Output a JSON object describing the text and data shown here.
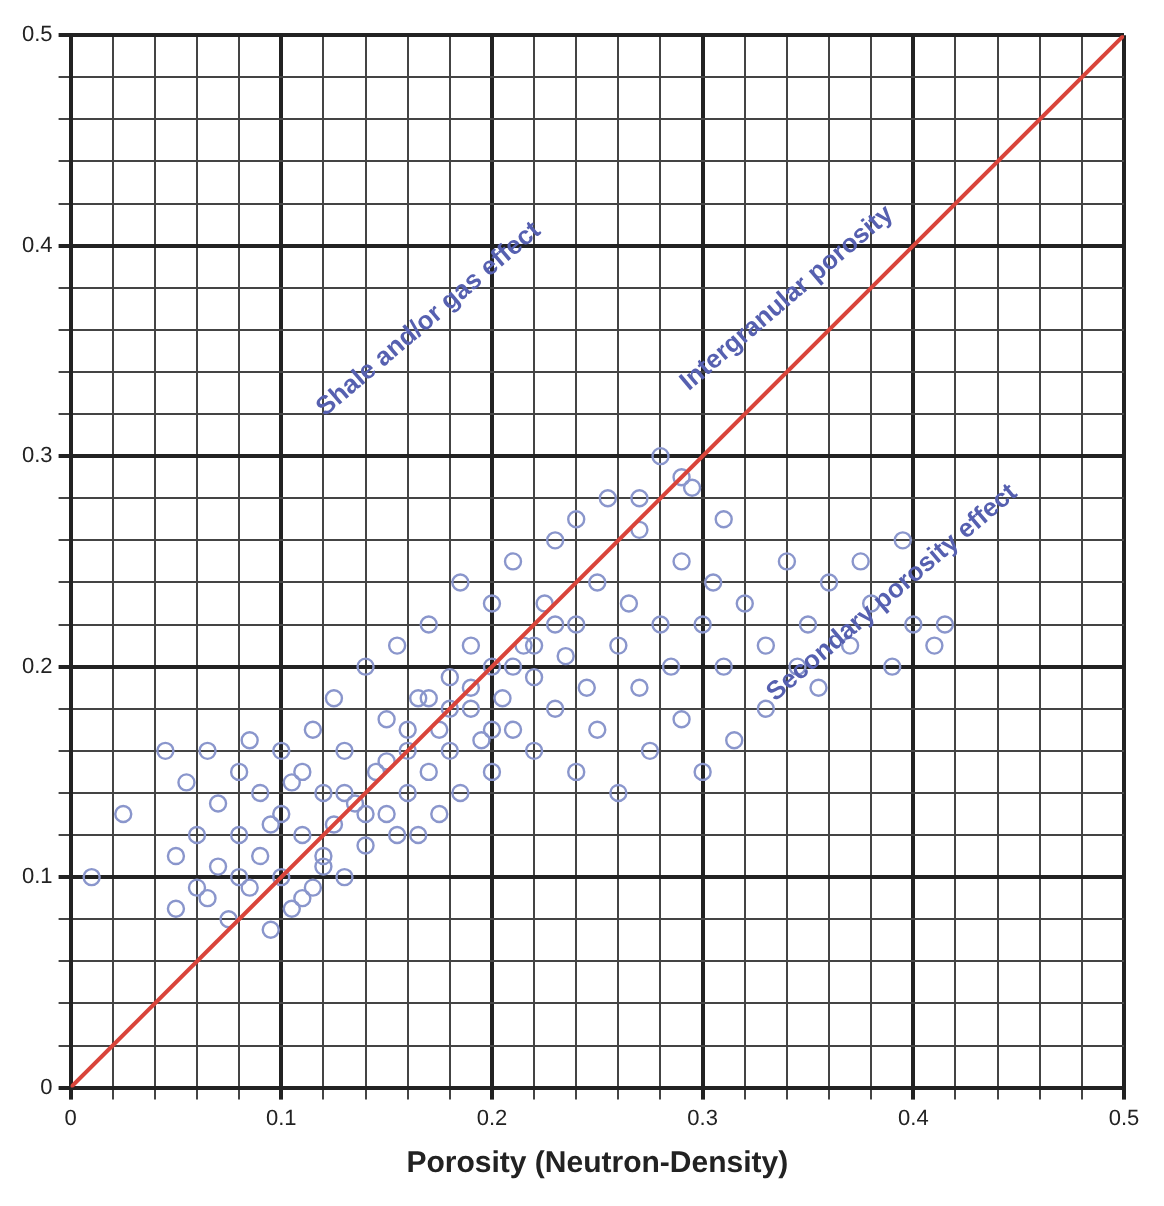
{
  "chart_data": {
    "type": "scatter",
    "xlabel": "Porosity (Neutron-Density)",
    "xlim": [
      0,
      0.5
    ],
    "ylim": [
      0,
      0.5
    ],
    "xticks": [
      0,
      {
        "value": 0.02,
        "label": null
      },
      {
        "value": 0.04,
        "label": null
      },
      {
        "value": 0.06,
        "label": null
      },
      {
        "value": 0.08,
        "label": null
      },
      0.1,
      {
        "value": 0.12,
        "label": null
      },
      {
        "value": 0.14,
        "label": null
      },
      {
        "value": 0.16,
        "label": null
      },
      {
        "value": 0.18,
        "label": null
      },
      0.2,
      {
        "value": 0.22,
        "label": null
      },
      {
        "value": 0.24,
        "label": null
      },
      {
        "value": 0.26,
        "label": null
      },
      {
        "value": 0.28,
        "label": null
      },
      0.3,
      {
        "value": 0.32,
        "label": null
      },
      {
        "value": 0.34,
        "label": null
      },
      {
        "value": 0.36,
        "label": null
      },
      {
        "value": 0.38,
        "label": null
      },
      0.4,
      {
        "value": 0.42,
        "label": null
      },
      {
        "value": 0.44,
        "label": null
      },
      {
        "value": 0.46,
        "label": null
      },
      {
        "value": 0.48,
        "label": null
      },
      0.5
    ],
    "yticks": [
      0,
      {
        "value": 0.02,
        "label": null
      },
      {
        "value": 0.04,
        "label": null
      },
      {
        "value": 0.06,
        "label": null
      },
      {
        "value": 0.08,
        "label": null
      },
      0.1,
      {
        "value": 0.12,
        "label": null
      },
      {
        "value": 0.14,
        "label": null
      },
      {
        "value": 0.16,
        "label": null
      },
      {
        "value": 0.18,
        "label": null
      },
      0.2,
      {
        "value": 0.22,
        "label": null
      },
      {
        "value": 0.24,
        "label": null
      },
      {
        "value": 0.26,
        "label": null
      },
      {
        "value": 0.28,
        "label": null
      },
      0.3,
      {
        "value": 0.32,
        "label": null
      },
      {
        "value": 0.34,
        "label": null
      },
      {
        "value": 0.36,
        "label": null
      },
      {
        "value": 0.38,
        "label": null
      },
      0.4,
      {
        "value": 0.42,
        "label": null
      },
      {
        "value": 0.44,
        "label": null
      },
      {
        "value": 0.46,
        "label": null
      },
      {
        "value": 0.48,
        "label": null
      },
      0.5
    ],
    "grid": true,
    "marker": "circle",
    "annotations": [
      "Shale and/or gas effect",
      "Intergranular porosity",
      "Secondary porosity effect"
    ],
    "series": [
      {
        "color": "#8a96cc",
        "x": [
          0.01,
          0.025,
          0.045,
          0.05,
          0.05,
          0.055,
          0.06,
          0.06,
          0.065,
          0.07,
          0.07,
          0.075,
          0.08,
          0.08,
          0.085,
          0.085,
          0.09,
          0.09,
          0.095,
          0.1,
          0.1,
          0.1,
          0.105,
          0.11,
          0.11,
          0.115,
          0.115,
          0.12,
          0.12,
          0.125,
          0.125,
          0.13,
          0.13,
          0.135,
          0.14,
          0.14,
          0.145,
          0.15,
          0.15,
          0.155,
          0.155,
          0.16,
          0.16,
          0.165,
          0.17,
          0.17,
          0.175,
          0.175,
          0.18,
          0.18,
          0.185,
          0.185,
          0.19,
          0.19,
          0.195,
          0.2,
          0.2,
          0.2,
          0.205,
          0.21,
          0.21,
          0.215,
          0.22,
          0.22,
          0.225,
          0.23,
          0.23,
          0.235,
          0.24,
          0.24,
          0.245,
          0.25,
          0.25,
          0.255,
          0.26,
          0.26,
          0.265,
          0.27,
          0.27,
          0.275,
          0.28,
          0.28,
          0.285,
          0.29,
          0.29,
          0.295,
          0.3,
          0.3,
          0.305,
          0.31,
          0.31,
          0.315,
          0.32,
          0.33,
          0.33,
          0.34,
          0.345,
          0.35,
          0.355,
          0.36,
          0.37,
          0.375,
          0.38,
          0.39,
          0.395,
          0.4,
          0.41,
          0.415,
          0.27,
          0.24,
          0.29,
          0.14,
          0.16,
          0.18,
          0.15,
          0.17,
          0.19,
          0.21,
          0.23,
          0.12,
          0.13,
          0.11,
          0.08,
          0.065,
          0.2,
          0.22,
          0.165,
          0.095,
          0.105
        ],
        "values": [
          0.1,
          0.13,
          0.16,
          0.11,
          0.085,
          0.145,
          0.12,
          0.095,
          0.16,
          0.135,
          0.105,
          0.08,
          0.15,
          0.12,
          0.165,
          0.095,
          0.14,
          0.11,
          0.075,
          0.16,
          0.13,
          0.1,
          0.085,
          0.15,
          0.12,
          0.17,
          0.095,
          0.14,
          0.11,
          0.185,
          0.125,
          0.1,
          0.16,
          0.135,
          0.2,
          0.115,
          0.15,
          0.175,
          0.13,
          0.12,
          0.21,
          0.16,
          0.14,
          0.185,
          0.15,
          0.22,
          0.17,
          0.13,
          0.195,
          0.16,
          0.24,
          0.14,
          0.18,
          0.21,
          0.165,
          0.2,
          0.15,
          0.23,
          0.185,
          0.17,
          0.25,
          0.21,
          0.195,
          0.16,
          0.23,
          0.18,
          0.26,
          0.205,
          0.15,
          0.22,
          0.19,
          0.24,
          0.17,
          0.28,
          0.21,
          0.14,
          0.23,
          0.19,
          0.265,
          0.16,
          0.22,
          0.3,
          0.2,
          0.25,
          0.175,
          0.285,
          0.22,
          0.15,
          0.24,
          0.2,
          0.27,
          0.165,
          0.23,
          0.21,
          0.18,
          0.25,
          0.2,
          0.22,
          0.19,
          0.24,
          0.21,
          0.25,
          0.23,
          0.2,
          0.26,
          0.22,
          0.21,
          0.22,
          0.28,
          0.27,
          0.29,
          0.13,
          0.17,
          0.18,
          0.155,
          0.185,
          0.19,
          0.2,
          0.22,
          0.105,
          0.14,
          0.09,
          0.1,
          0.09,
          0.17,
          0.21,
          0.12,
          0.125,
          0.145
        ]
      },
      {
        "type": "line",
        "color": "#d9443a",
        "marker": "none",
        "x": [
          0,
          0.5
        ],
        "values": [
          0,
          0.5
        ]
      }
    ]
  }
}
